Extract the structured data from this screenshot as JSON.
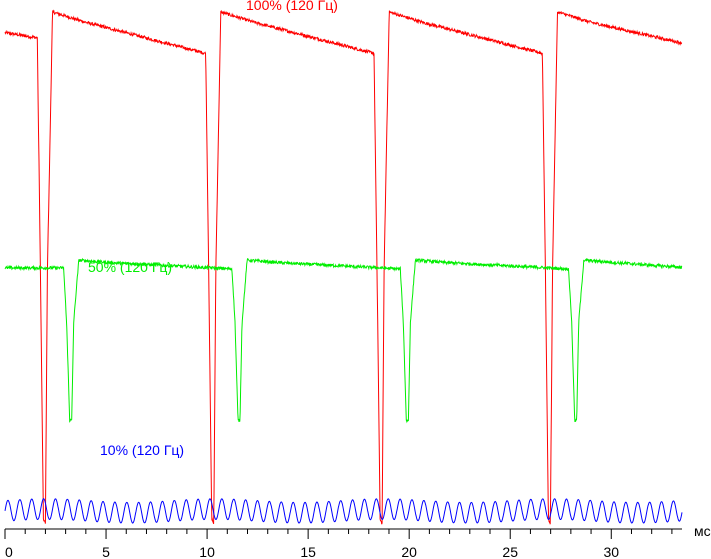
{
  "chart_data": {
    "type": "line",
    "xlabel": "мс",
    "xlim": [
      0,
      33.5
    ],
    "x_ticks": [
      0,
      5,
      10,
      15,
      20,
      25,
      30
    ],
    "x_tick_labels": [
      "0",
      "5",
      "10",
      "15",
      "20",
      "25",
      "30"
    ],
    "grid": false,
    "legend": "none",
    "series": [
      {
        "name": "100% (120 Гц)",
        "color": "#ff0000",
        "period_ms": 8.33,
        "x": [
          0,
          1.6,
          1.75,
          1.9,
          2.0,
          2.1,
          2.35,
          4.0,
          9.93,
          10.08,
          10.23,
          10.33,
          10.43,
          10.68,
          12.33,
          18.26,
          18.41,
          18.56,
          18.66,
          18.76,
          19.01,
          20.66,
          26.59,
          26.74,
          26.89,
          26.99,
          27.09,
          27.34,
          28.99,
          33.5
        ],
        "values": [
          96,
          95,
          50,
          2,
          1,
          50,
          100,
          98,
          92,
          50,
          2,
          1,
          50,
          100,
          98,
          92,
          50,
          2,
          1,
          50,
          100,
          98,
          92,
          50,
          2,
          1,
          50,
          100,
          98,
          94
        ]
      },
      {
        "name": "50% (120 Гц)",
        "color": "#00ee00",
        "period_ms": 8.33,
        "x": [
          0,
          2.9,
          3.05,
          3.2,
          3.3,
          3.4,
          3.65,
          5.3,
          11.23,
          11.38,
          11.53,
          11.63,
          11.73,
          11.98,
          13.63,
          19.56,
          19.71,
          19.86,
          19.96,
          20.06,
          20.31,
          21.96,
          27.89,
          28.04,
          28.19,
          28.29,
          28.39,
          28.64,
          30.29,
          33.5
        ],
        "values": [
          50.5,
          50.5,
          40,
          21,
          21,
          40,
          52,
          51.5,
          50.3,
          40,
          21,
          21,
          40,
          52,
          51.5,
          50.3,
          40,
          21,
          21,
          40,
          52,
          51.5,
          50.3,
          40,
          21,
          21,
          40,
          52,
          51.5,
          50.6
        ]
      },
      {
        "name": "10% (120 Гц)",
        "color": "#0000ff",
        "oscillation_period_ms": 0.588,
        "mean": 3.5,
        "amplitude": 2.0,
        "x": [
          0,
          33.5
        ],
        "values": [
          3.5,
          3.5
        ]
      }
    ]
  }
}
